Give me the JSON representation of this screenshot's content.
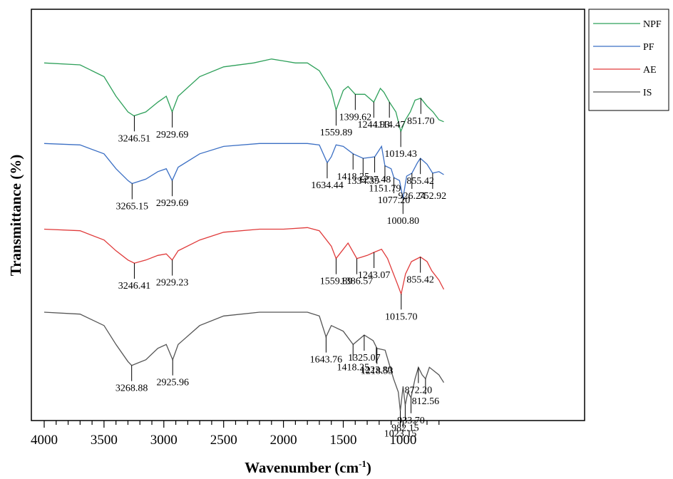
{
  "chart_data": {
    "type": "line",
    "xlabel": "Wavenumber (cm",
    "xlabel_sup": "-1",
    "xlabel_end": ")",
    "ylabel": "Transmittance (%)",
    "xlim": [
      4000,
      650
    ],
    "x_reversed": true,
    "xticks": [
      4000,
      3500,
      3000,
      2500,
      2000,
      1500,
      1000
    ],
    "y_ticks_shown": false,
    "legend_position": "top-right, outside plot",
    "series": [
      {
        "name": "NPF",
        "color": "#2ea05a",
        "points": [
          [
            4000,
            0.97
          ],
          [
            3700,
            0.96
          ],
          [
            3500,
            0.9
          ],
          [
            3400,
            0.8
          ],
          [
            3300,
            0.72
          ],
          [
            3250,
            0.7
          ],
          [
            3150,
            0.72
          ],
          [
            3050,
            0.77
          ],
          [
            2980,
            0.8
          ],
          [
            2930,
            0.72
          ],
          [
            2880,
            0.8
          ],
          [
            2700,
            0.9
          ],
          [
            2500,
            0.95
          ],
          [
            2250,
            0.97
          ],
          [
            2100,
            0.99
          ],
          [
            2000,
            0.98
          ],
          [
            1900,
            0.97
          ],
          [
            1800,
            0.97
          ],
          [
            1700,
            0.93
          ],
          [
            1600,
            0.83
          ],
          [
            1560,
            0.73
          ],
          [
            1500,
            0.83
          ],
          [
            1460,
            0.85
          ],
          [
            1400,
            0.81
          ],
          [
            1320,
            0.81
          ],
          [
            1245,
            0.77
          ],
          [
            1190,
            0.84
          ],
          [
            1160,
            0.82
          ],
          [
            1114,
            0.77
          ],
          [
            1060,
            0.72
          ],
          [
            1019,
            0.62
          ],
          [
            980,
            0.68
          ],
          [
            940,
            0.72
          ],
          [
            900,
            0.78
          ],
          [
            852,
            0.79
          ],
          [
            800,
            0.75
          ],
          [
            750,
            0.72
          ],
          [
            700,
            0.68
          ],
          [
            660,
            0.67
          ]
        ]
      },
      {
        "name": "PF",
        "color": "#3b6fc4",
        "points": [
          [
            4000,
            0.97
          ],
          [
            3700,
            0.96
          ],
          [
            3500,
            0.9
          ],
          [
            3400,
            0.8
          ],
          [
            3300,
            0.72
          ],
          [
            3265,
            0.7
          ],
          [
            3150,
            0.73
          ],
          [
            3050,
            0.78
          ],
          [
            2980,
            0.8
          ],
          [
            2930,
            0.72
          ],
          [
            2880,
            0.81
          ],
          [
            2700,
            0.9
          ],
          [
            2500,
            0.95
          ],
          [
            2200,
            0.97
          ],
          [
            2000,
            0.97
          ],
          [
            1800,
            0.97
          ],
          [
            1700,
            0.96
          ],
          [
            1634,
            0.84
          ],
          [
            1600,
            0.88
          ],
          [
            1560,
            0.96
          ],
          [
            1500,
            0.95
          ],
          [
            1418,
            0.9
          ],
          [
            1334,
            0.87
          ],
          [
            1237,
            0.88
          ],
          [
            1180,
            0.95
          ],
          [
            1152,
            0.82
          ],
          [
            1100,
            0.8
          ],
          [
            1077,
            0.74
          ],
          [
            1030,
            0.72
          ],
          [
            1001,
            0.6
          ],
          [
            970,
            0.75
          ],
          [
            926,
            0.77
          ],
          [
            880,
            0.84
          ],
          [
            855,
            0.87
          ],
          [
            800,
            0.83
          ],
          [
            753,
            0.77
          ],
          [
            700,
            0.78
          ],
          [
            660,
            0.76
          ]
        ]
      },
      {
        "name": "AE",
        "color": "#e03a3a",
        "points": [
          [
            4000,
            0.97
          ],
          [
            3700,
            0.96
          ],
          [
            3500,
            0.9
          ],
          [
            3400,
            0.83
          ],
          [
            3300,
            0.77
          ],
          [
            3246,
            0.75
          ],
          [
            3150,
            0.77
          ],
          [
            3050,
            0.8
          ],
          [
            2980,
            0.81
          ],
          [
            2930,
            0.77
          ],
          [
            2880,
            0.83
          ],
          [
            2700,
            0.9
          ],
          [
            2500,
            0.95
          ],
          [
            2200,
            0.97
          ],
          [
            2000,
            0.97
          ],
          [
            1800,
            0.98
          ],
          [
            1700,
            0.96
          ],
          [
            1600,
            0.86
          ],
          [
            1560,
            0.78
          ],
          [
            1500,
            0.84
          ],
          [
            1460,
            0.88
          ],
          [
            1387,
            0.78
          ],
          [
            1300,
            0.8
          ],
          [
            1243,
            0.82
          ],
          [
            1180,
            0.84
          ],
          [
            1130,
            0.78
          ],
          [
            1100,
            0.72
          ],
          [
            1050,
            0.62
          ],
          [
            1016,
            0.55
          ],
          [
            980,
            0.68
          ],
          [
            930,
            0.76
          ],
          [
            855,
            0.79
          ],
          [
            800,
            0.76
          ],
          [
            760,
            0.7
          ],
          [
            700,
            0.64
          ],
          [
            660,
            0.58
          ]
        ]
      },
      {
        "name": "IS",
        "color": "#555555",
        "points": [
          [
            4000,
            0.97
          ],
          [
            3700,
            0.96
          ],
          [
            3500,
            0.9
          ],
          [
            3400,
            0.8
          ],
          [
            3300,
            0.71
          ],
          [
            3269,
            0.69
          ],
          [
            3150,
            0.72
          ],
          [
            3050,
            0.78
          ],
          [
            2980,
            0.8
          ],
          [
            2926,
            0.72
          ],
          [
            2880,
            0.8
          ],
          [
            2700,
            0.9
          ],
          [
            2500,
            0.95
          ],
          [
            2200,
            0.97
          ],
          [
            2000,
            0.97
          ],
          [
            1800,
            0.97
          ],
          [
            1700,
            0.95
          ],
          [
            1644,
            0.84
          ],
          [
            1600,
            0.9
          ],
          [
            1500,
            0.87
          ],
          [
            1418,
            0.8
          ],
          [
            1325,
            0.85
          ],
          [
            1250,
            0.82
          ],
          [
            1219,
            0.78
          ],
          [
            1150,
            0.77
          ],
          [
            1080,
            0.62
          ],
          [
            1040,
            0.55
          ],
          [
            1023,
            0.45
          ],
          [
            1000,
            0.58
          ],
          [
            982,
            0.48
          ],
          [
            960,
            0.55
          ],
          [
            934,
            0.52
          ],
          [
            900,
            0.62
          ],
          [
            872,
            0.68
          ],
          [
            840,
            0.64
          ],
          [
            812,
            0.62
          ],
          [
            780,
            0.68
          ],
          [
            700,
            0.64
          ],
          [
            660,
            0.6
          ]
        ]
      }
    ],
    "annotations": [
      {
        "series": "NPF",
        "text": "3246.51",
        "x": 3246.51
      },
      {
        "series": "NPF",
        "text": "2929.69",
        "x": 2929.69
      },
      {
        "series": "NPF",
        "text": "1559.89",
        "x": 1559.89
      },
      {
        "series": "NPF",
        "text": "1399.62",
        "x": 1399.62
      },
      {
        "series": "NPF",
        "text": "1244.93",
        "x": 1244.93
      },
      {
        "series": "NPF",
        "text": "1114.47",
        "x": 1114.47
      },
      {
        "series": "NPF",
        "text": "1019.43",
        "x": 1019.43
      },
      {
        "series": "NPF",
        "text": "851.70",
        "x": 851.7
      },
      {
        "series": "PF",
        "text": "3265.15",
        "x": 3265.15
      },
      {
        "series": "PF",
        "text": "2929.69",
        "x": 2929.69
      },
      {
        "series": "PF",
        "text": "1634.44",
        "x": 1634.44
      },
      {
        "series": "PF",
        "text": "1418.25",
        "x": 1418.25
      },
      {
        "series": "PF",
        "text": "1334.39",
        "x": 1334.39
      },
      {
        "series": "PF",
        "text": "1237.48",
        "x": 1237.48
      },
      {
        "series": "PF",
        "text": "1151.79",
        "x": 1151.79
      },
      {
        "series": "PF",
        "text": "1077.20",
        "x": 1077.2
      },
      {
        "series": "PF",
        "text": "926.24",
        "x": 926.24
      },
      {
        "series": "PF",
        "text": "855.42",
        "x": 855.42
      },
      {
        "series": "PF",
        "text": "752.92",
        "x": 752.92
      },
      {
        "series": "PF",
        "text": "1000.80",
        "x": 1000.8
      },
      {
        "series": "AE",
        "text": "3246.41",
        "x": 3246.41
      },
      {
        "series": "AE",
        "text": "2929.23",
        "x": 2929.23
      },
      {
        "series": "AE",
        "text": "1559.89",
        "x": 1559.89
      },
      {
        "series": "AE",
        "text": "1386.57",
        "x": 1386.57
      },
      {
        "series": "AE",
        "text": "1243.07",
        "x": 1243.07
      },
      {
        "series": "AE",
        "text": "855.42",
        "x": 855.42
      },
      {
        "series": "AE",
        "text": "1015.70",
        "x": 1015.7
      },
      {
        "series": "IS",
        "text": "3268.88",
        "x": 3268.88
      },
      {
        "series": "IS",
        "text": "2925.96",
        "x": 2925.96
      },
      {
        "series": "IS",
        "text": "1643.76",
        "x": 1643.76
      },
      {
        "series": "IS",
        "text": "1418.25",
        "x": 1418.25
      },
      {
        "series": "IS",
        "text": "1325.07",
        "x": 1325.07
      },
      {
        "series": "IS",
        "text": "1218.53",
        "x": 1218.53
      },
      {
        "series": "IS",
        "text": "1223.80",
        "x": 1223.8
      },
      {
        "series": "IS",
        "text": "872.20",
        "x": 872.2
      },
      {
        "series": "IS",
        "text": "812.56",
        "x": 812.56
      },
      {
        "series": "IS",
        "text": "933.70",
        "x": 933.7
      },
      {
        "series": "IS",
        "text": "982.15",
        "x": 982.15
      },
      {
        "series": "IS",
        "text": "1023.15",
        "x": 1023.15
      }
    ]
  }
}
